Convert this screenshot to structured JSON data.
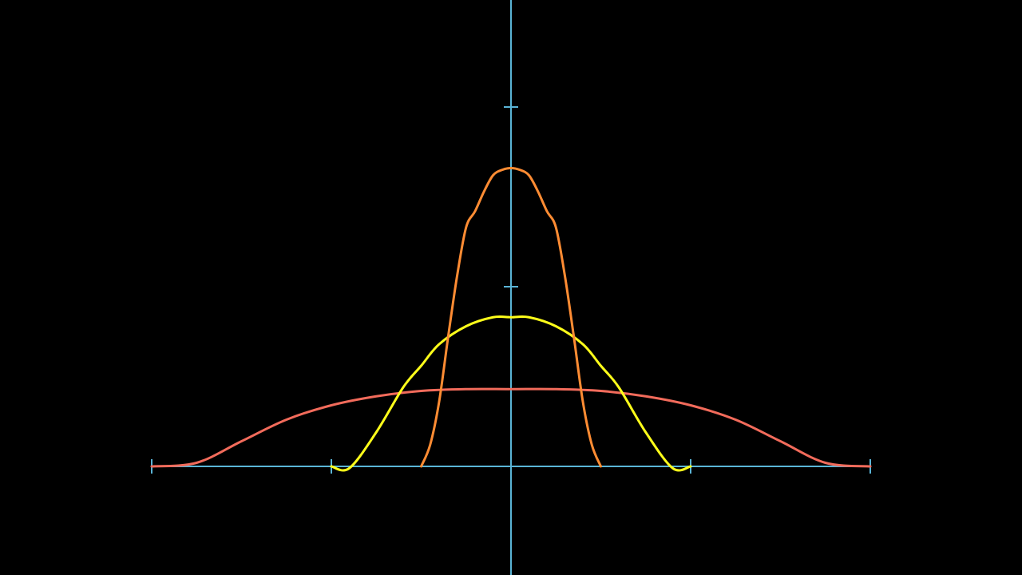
{
  "chart_data": {
    "type": "line",
    "title": "",
    "xlabel": "",
    "ylabel": "",
    "xlim": [
      -2,
      2
    ],
    "ylim": [
      -0.6,
      2.6
    ],
    "grid": false,
    "axis_color": "#5ab4d6",
    "x_ticks": [
      -2,
      -1,
      1,
      2
    ],
    "y_ticks": [
      1,
      2
    ],
    "series": [
      {
        "color": "#f26b5b",
        "x": [
          -2,
          -1.75,
          -1.5,
          -1.25,
          -1,
          -0.75,
          -0.5,
          -0.25,
          0,
          0.25,
          0.5,
          0.75,
          1,
          1.25,
          1.5,
          1.75,
          2
        ],
        "y": [
          0,
          0.02,
          0.14,
          0.26,
          0.34,
          0.39,
          0.42,
          0.43,
          0.43,
          0.43,
          0.42,
          0.39,
          0.34,
          0.26,
          0.14,
          0.02,
          0
        ]
      },
      {
        "color": "#ffff1a",
        "x": [
          -1,
          -0.9,
          -0.75,
          -0.6,
          -0.5,
          -0.4,
          -0.25,
          -0.1,
          0,
          0.1,
          0.25,
          0.4,
          0.5,
          0.6,
          0.75,
          0.9,
          1
        ],
        "y": [
          0,
          -0.01,
          0.19,
          0.44,
          0.56,
          0.68,
          0.78,
          0.83,
          0.83,
          0.83,
          0.78,
          0.68,
          0.56,
          0.44,
          0.19,
          -0.01,
          0
        ]
      },
      {
        "color": "#ff8c33",
        "x": [
          -0.5,
          -0.45,
          -0.4,
          -0.35,
          -0.3,
          -0.25,
          -0.2,
          -0.15,
          -0.1,
          -0.05,
          0,
          0.05,
          0.1,
          0.15,
          0.2,
          0.25,
          0.3,
          0.35,
          0.4,
          0.45,
          0.5
        ],
        "y": [
          0,
          0.12,
          0.36,
          0.72,
          1.06,
          1.33,
          1.42,
          1.53,
          1.62,
          1.65,
          1.66,
          1.65,
          1.62,
          1.53,
          1.42,
          1.33,
          1.06,
          0.72,
          0.36,
          0.12,
          0
        ]
      }
    ]
  }
}
